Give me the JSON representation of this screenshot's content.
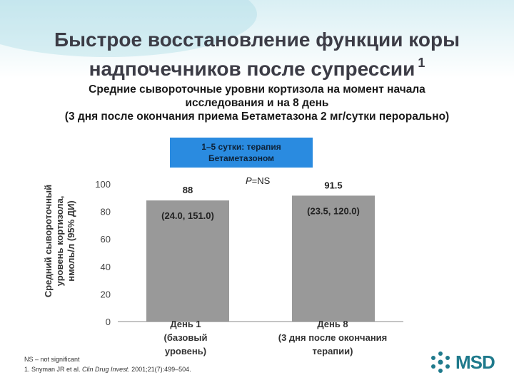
{
  "title": "Быстрое восстановление функции коры надпочечников после супрессии",
  "title_sup": "1",
  "subtitle": [
    "Средние сывороточные уровни кортизола на момент начала",
    "исследования и на 8 день",
    "(3 дня после окончания приема Бетаметазона 2 мг/сутки перорально)"
  ],
  "therapy_box": [
    "1–5 сутки: терапия",
    "Бетаметазоном"
  ],
  "p_value": {
    "label": "P",
    "text": "=NS"
  },
  "colors": {
    "bar": "#999999",
    "therapy_box": "#2a8be0",
    "title": "#3c3c46",
    "logo": "#1f7a8c"
  },
  "chart_data": {
    "type": "bar",
    "ylabel": [
      "Средний сывороточный",
      "уровень кортизола,",
      "нмоль/л (95% ДИ)"
    ],
    "ylim": [
      0,
      100
    ],
    "yticks": [
      "0",
      "20",
      "40",
      "60",
      "80",
      "100"
    ],
    "categories": [
      [
        "День 1",
        "(базовый",
        "уровень)"
      ],
      [
        "День 8",
        "(3 дня после окончания",
        "терапии)"
      ]
    ],
    "values": [
      88,
      91.5
    ],
    "value_labels": [
      "88",
      "91.5"
    ],
    "ci_labels": [
      "(24.0, 151.0)",
      "(23.5, 120.0)"
    ],
    "grid": false,
    "legend": "none"
  },
  "footnote": {
    "ns": "NS – not significant",
    "ref_prefix": "1. Snyman JR et al. ",
    "ref_journal": "Clin Drug Invest.",
    "ref_suffix": " 2001;21(7):499–504."
  },
  "logo": {
    "text": "MSD",
    "icon": "msd-hexagon-icon"
  }
}
